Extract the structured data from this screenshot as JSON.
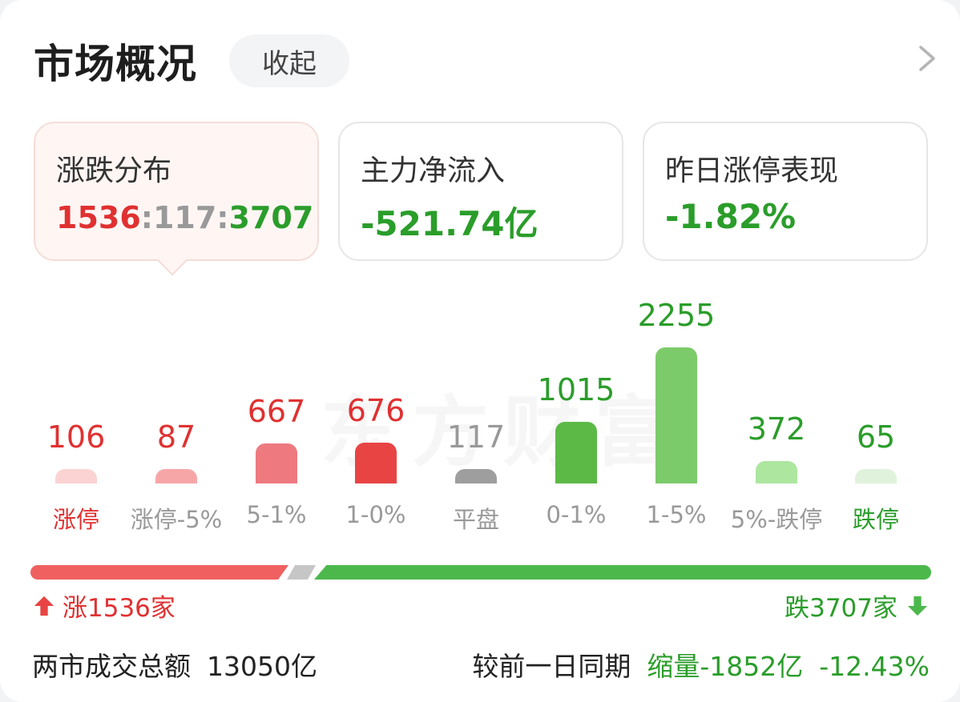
{
  "header": {
    "title": "市场概况",
    "collapse_label": "收起"
  },
  "tiles": [
    {
      "label": "涨跌分布",
      "up": "1536",
      "sep1": ":",
      "flat": "117",
      "sep2": ":",
      "down": "3707"
    },
    {
      "label": "主力净流入",
      "value": "-521.74亿"
    },
    {
      "label": "昨日涨停表现",
      "value": "-1.82%"
    }
  ],
  "watermark": "东方财富",
  "chart_data": {
    "type": "bar",
    "categories": [
      "涨停",
      "涨停-5%",
      "5-1%",
      "1-0%",
      "平盘",
      "0-1%",
      "1-5%",
      "5%-跌停",
      "跌停"
    ],
    "values": [
      106,
      87,
      667,
      676,
      117,
      1015,
      2255,
      372,
      65
    ],
    "value_labels": [
      "106",
      "87",
      "667",
      "676",
      "117",
      "1015",
      "2255",
      "372",
      "65"
    ],
    "colors": [
      "#fbd3d3",
      "#f7a6a8",
      "#ee7a80",
      "#e84444",
      "#9e9e9e",
      "#5cb946",
      "#7ccb6a",
      "#ade69f",
      "#e0f2dc"
    ],
    "label_colors": [
      "#e03131",
      "#999999",
      "#999999",
      "#999999",
      "#999999",
      "#999999",
      "#999999",
      "#999999",
      "#2a9d2a"
    ],
    "value_colors": [
      "#e03131",
      "#e03131",
      "#e03131",
      "#e03131",
      "#999999",
      "#2a9d2a",
      "#2a9d2a",
      "#2a9d2a",
      "#2a9d2a"
    ]
  },
  "ratio": {
    "up": 1536,
    "flat": 117,
    "down": 3707
  },
  "counts": {
    "up_label": "涨1536家",
    "down_label": "跌3707家"
  },
  "turnover": {
    "label": "两市成交总额",
    "amount": "13050亿",
    "compare_label": "较前一日同期",
    "change": "缩量-1852亿",
    "change_pct": "-12.43%"
  }
}
